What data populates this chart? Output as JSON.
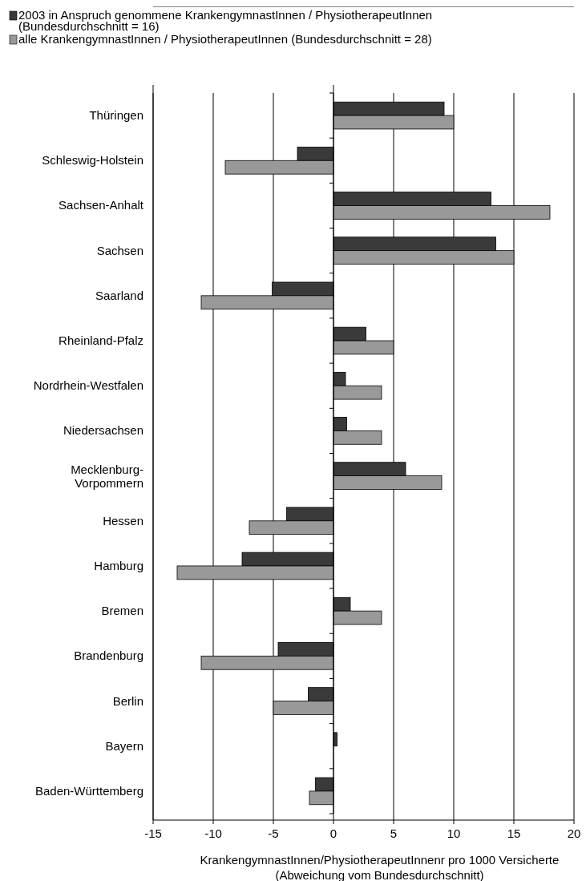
{
  "chart_data": {
    "type": "bar",
    "orientation": "horizontal",
    "xlabel": "KrankengymnastInnen/PhysiotherapeutInnenr pro 1000 Versicherte\n(Abweichung vom Bundesdurchschnitt)",
    "categories": [
      "Thüringen",
      "Schleswig-Holstein",
      "Sachsen-Anhalt",
      "Sachsen",
      "Saarland",
      "Rheinland-Pfalz",
      "Nordrhein-Westfalen",
      "Niedersachsen",
      "Mecklenburg-Vorpommern",
      "Hessen",
      "Hamburg",
      "Bremen",
      "Brandenburg",
      "Berlin",
      "Bayern",
      "Baden-Württemberg"
    ],
    "series": [
      {
        "name": "2003 in Anspruch genommene KrankengymnastInnen / PhysiotherapeutInnen (Bundesdurchschnitt = 16)",
        "color": "#3a3a3a",
        "values": [
          9.2,
          -3,
          13.1,
          13.5,
          -5.1,
          2.7,
          1,
          1.1,
          6,
          -3.9,
          -7.6,
          1.4,
          -4.6,
          -2.1,
          0.3,
          -1.5
        ]
      },
      {
        "name": "alle KrankengymnastInnen / PhysiotherapeutInnen (Bundesdurchschnitt = 28)",
        "color": "#999999",
        "values": [
          10,
          -9,
          18,
          15,
          -11,
          5,
          4,
          4,
          9,
          -7,
          -13,
          4,
          -11,
          -5,
          0,
          -2
        ]
      }
    ],
    "xlim": [
      -15,
      20
    ],
    "xticks": [
      -15,
      -10,
      -5,
      0,
      5,
      10,
      15,
      20
    ],
    "grid": "x",
    "legend": "top"
  }
}
